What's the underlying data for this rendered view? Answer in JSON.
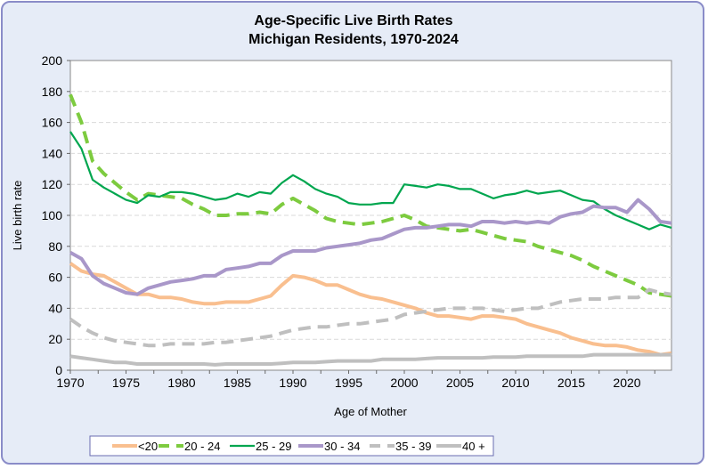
{
  "chart_data": {
    "type": "line",
    "title": [
      "Age-Specific Live Birth Rates",
      "Michigan Residents, 1970-2024"
    ],
    "xlabel": "Age of Mother",
    "ylabel": "Live birth rate",
    "xlim": [
      1970,
      2024
    ],
    "ylim": [
      0,
      200
    ],
    "x_ticks": [
      1970,
      1975,
      1980,
      1985,
      1990,
      1995,
      2000,
      2005,
      2010,
      2015,
      2020
    ],
    "y_ticks": [
      0,
      20,
      40,
      60,
      80,
      100,
      120,
      140,
      160,
      180,
      200
    ],
    "grid": "horizontal dashed",
    "legend": "bottom",
    "x_start": 1970,
    "series": [
      {
        "name": "<20",
        "color": "#F9BF8F",
        "style": "solid-thick",
        "values": [
          69,
          64,
          62,
          61,
          57,
          53,
          49,
          49,
          47,
          47,
          46,
          44,
          43,
          43,
          44,
          44,
          44,
          46,
          48,
          55,
          61,
          60,
          58,
          55,
          55,
          52,
          49,
          47,
          46,
          44,
          42,
          40,
          37,
          35,
          35,
          34,
          33,
          35,
          35,
          34,
          33,
          30,
          28,
          26,
          24,
          21,
          19,
          17,
          16,
          16,
          15,
          13,
          12,
          10,
          11
        ]
      },
      {
        "name": "20 - 24",
        "color": "#7DCB3F",
        "style": "dashed",
        "values": [
          178,
          160,
          135,
          127,
          121,
          115,
          110,
          114,
          113,
          112,
          111,
          107,
          104,
          100,
          100,
          101,
          101,
          102,
          101,
          107,
          111,
          107,
          103,
          98,
          96,
          95,
          94,
          95,
          96,
          98,
          100,
          97,
          93,
          92,
          91,
          90,
          91,
          89,
          87,
          85,
          84,
          83,
          80,
          78,
          76,
          74,
          71,
          67,
          64,
          61,
          58,
          55,
          50,
          49,
          48
        ]
      },
      {
        "name": "25 - 29",
        "color": "#00A64F",
        "style": "solid-thin",
        "values": [
          154,
          143,
          123,
          118,
          114,
          110,
          108,
          113,
          112,
          115,
          115,
          114,
          112,
          110,
          111,
          114,
          112,
          115,
          114,
          121,
          126,
          122,
          117,
          114,
          112,
          108,
          107,
          107,
          108,
          108,
          120,
          119,
          118,
          120,
          119,
          117,
          117,
          114,
          111,
          113,
          114,
          116,
          114,
          115,
          116,
          113,
          110,
          109,
          104,
          100,
          97,
          94,
          91,
          94,
          92
        ]
      },
      {
        "name": "30 - 34",
        "color": "#A997C9",
        "style": "solid-thick",
        "values": [
          76,
          72,
          61,
          56,
          53,
          50,
          49,
          53,
          55,
          57,
          58,
          59,
          61,
          61,
          65,
          66,
          67,
          69,
          69,
          74,
          77,
          77,
          77,
          79,
          80,
          81,
          82,
          84,
          85,
          88,
          91,
          92,
          92,
          93,
          94,
          94,
          93,
          96,
          96,
          95,
          96,
          95,
          96,
          95,
          99,
          101,
          102,
          106,
          105,
          105,
          102,
          110,
          104,
          96,
          95
        ]
      },
      {
        "name": "35 - 39",
        "color": "#BFBFBF",
        "style": "dashed",
        "values": [
          33,
          28,
          24,
          21,
          19,
          18,
          17,
          16,
          16,
          17,
          17,
          17,
          17,
          18,
          18,
          19,
          20,
          21,
          22,
          24,
          26,
          27,
          28,
          28,
          29,
          30,
          30,
          31,
          32,
          33,
          36,
          37,
          38,
          39,
          40,
          40,
          40,
          40,
          39,
          38,
          39,
          40,
          40,
          42,
          44,
          45,
          46,
          46,
          46,
          47,
          47,
          47,
          52,
          50,
          49
        ]
      },
      {
        "name": "40 +",
        "color": "#BFBFBF",
        "style": "solid-thick",
        "values": [
          9,
          8,
          7,
          6,
          5,
          5,
          4,
          4,
          4,
          4,
          4,
          4,
          4,
          3.5,
          4,
          4,
          4,
          4,
          4,
          4.5,
          5,
          5,
          5,
          5.5,
          6,
          6,
          6,
          6,
          7,
          7,
          7,
          7,
          7.5,
          8,
          8,
          8,
          8,
          8,
          8.5,
          8.5,
          8.5,
          9,
          9,
          9,
          9,
          9,
          9,
          10,
          10,
          10,
          10,
          10,
          10,
          10,
          10
        ]
      }
    ]
  }
}
